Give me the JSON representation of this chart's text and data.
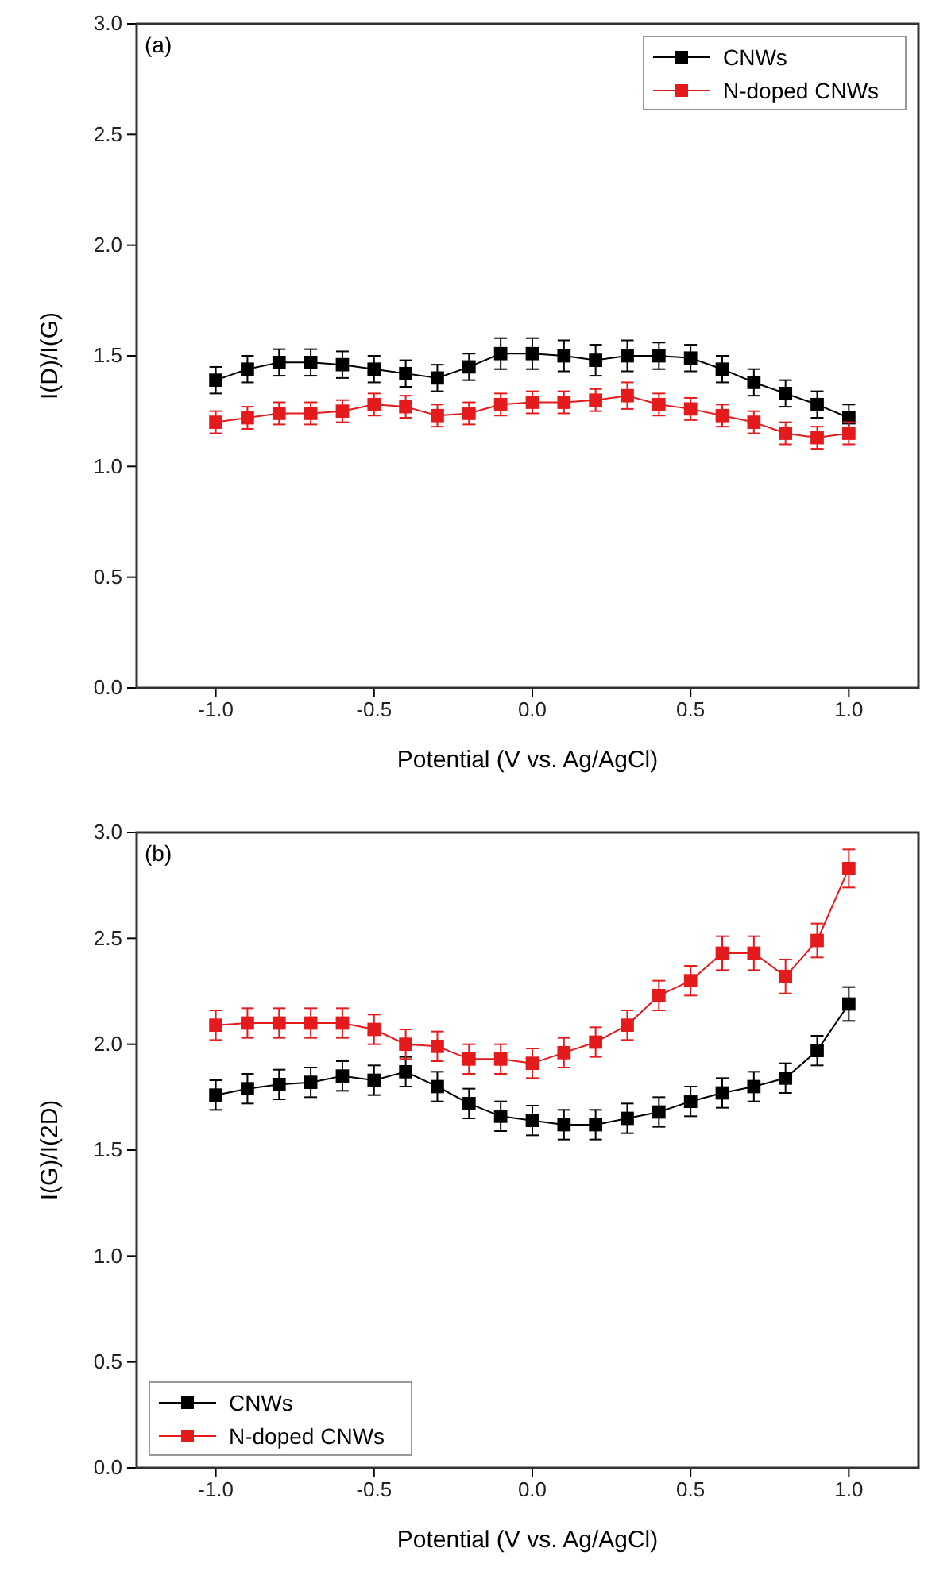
{
  "chart_data": [
    {
      "type": "line",
      "xlabel": "Potential (V vs. Ag/AgCl)",
      "ylabel": "I(D)/I(G)",
      "annotations": [
        "(a)"
      ],
      "x": [
        -1.0,
        -0.9,
        -0.8,
        -0.7,
        -0.6,
        -0.5,
        -0.4,
        -0.3,
        -0.2,
        -0.1,
        0.0,
        0.1,
        0.2,
        0.3,
        0.4,
        0.5,
        0.6,
        0.7,
        0.8,
        0.9,
        1.0
      ],
      "series": [
        {
          "name": "CNWs",
          "color": "#000000",
          "values": [
            1.39,
            1.44,
            1.47,
            1.47,
            1.46,
            1.44,
            1.42,
            1.4,
            1.45,
            1.51,
            1.51,
            1.5,
            1.48,
            1.5,
            1.5,
            1.49,
            1.44,
            1.38,
            1.33,
            1.28,
            1.22
          ],
          "errors": [
            0.06,
            0.06,
            0.06,
            0.06,
            0.06,
            0.06,
            0.06,
            0.06,
            0.06,
            0.07,
            0.07,
            0.07,
            0.07,
            0.07,
            0.06,
            0.06,
            0.06,
            0.06,
            0.06,
            0.06,
            0.06
          ]
        },
        {
          "name": "N-doped CNWs",
          "color": "#e41a1c",
          "values": [
            1.2,
            1.22,
            1.24,
            1.24,
            1.25,
            1.28,
            1.27,
            1.23,
            1.24,
            1.28,
            1.29,
            1.29,
            1.3,
            1.32,
            1.28,
            1.26,
            1.23,
            1.2,
            1.15,
            1.13,
            1.15
          ],
          "errors": [
            0.05,
            0.05,
            0.05,
            0.05,
            0.05,
            0.05,
            0.05,
            0.05,
            0.05,
            0.05,
            0.05,
            0.05,
            0.05,
            0.06,
            0.05,
            0.05,
            0.05,
            0.05,
            0.05,
            0.05,
            0.05
          ]
        }
      ],
      "xlim": [
        -1.25,
        1.22
      ],
      "ylim": [
        0,
        3
      ],
      "xticks": [
        {
          "value": -1,
          "label": "-1.0"
        },
        {
          "value": -0.5,
          "label": "-0.5"
        },
        {
          "value": 0,
          "label": "0.0"
        },
        {
          "value": 0.5,
          "label": "0.5"
        },
        {
          "value": 1,
          "label": "1.0"
        }
      ],
      "yticks": [
        {
          "value": 0,
          "label": "0.0"
        },
        {
          "value": 0.5,
          "label": "0.5"
        },
        {
          "value": 1,
          "label": "1.0"
        },
        {
          "value": 1.5,
          "label": "1.5"
        },
        {
          "value": 2,
          "label": "2.0"
        },
        {
          "value": 2.5,
          "label": "2.5"
        },
        {
          "value": 3,
          "label": "3.0"
        }
      ],
      "legend": "top right",
      "marker": "square",
      "line_style": "solid"
    },
    {
      "type": "line",
      "xlabel": "Potential (V vs. Ag/AgCl)",
      "ylabel": "I(G)/I(2D)",
      "annotations": [
        "(b)"
      ],
      "x": [
        -1.0,
        -0.9,
        -0.8,
        -0.7,
        -0.6,
        -0.5,
        -0.4,
        -0.3,
        -0.2,
        -0.1,
        0.0,
        0.1,
        0.2,
        0.3,
        0.4,
        0.5,
        0.6,
        0.7,
        0.8,
        0.9,
        1.0
      ],
      "series": [
        {
          "name": "CNWs",
          "color": "#000000",
          "values": [
            1.76,
            1.79,
            1.81,
            1.82,
            1.85,
            1.83,
            1.87,
            1.8,
            1.72,
            1.66,
            1.64,
            1.62,
            1.62,
            1.65,
            1.68,
            1.73,
            1.77,
            1.8,
            1.84,
            1.97,
            2.19
          ],
          "errors": [
            0.07,
            0.07,
            0.07,
            0.07,
            0.07,
            0.07,
            0.07,
            0.07,
            0.07,
            0.07,
            0.07,
            0.07,
            0.07,
            0.07,
            0.07,
            0.07,
            0.07,
            0.07,
            0.07,
            0.07,
            0.08
          ]
        },
        {
          "name": "N-doped CNWs",
          "color": "#e41a1c",
          "values": [
            2.09,
            2.1,
            2.1,
            2.1,
            2.1,
            2.07,
            2.0,
            1.99,
            1.93,
            1.93,
            1.91,
            1.96,
            2.01,
            2.09,
            2.23,
            2.3,
            2.43,
            2.43,
            2.32,
            2.49,
            2.83
          ],
          "errors": [
            0.07,
            0.07,
            0.07,
            0.07,
            0.07,
            0.07,
            0.07,
            0.07,
            0.07,
            0.07,
            0.07,
            0.07,
            0.07,
            0.07,
            0.07,
            0.07,
            0.08,
            0.08,
            0.08,
            0.08,
            0.09
          ]
        }
      ],
      "xlim": [
        -1.25,
        1.22
      ],
      "ylim": [
        0,
        3
      ],
      "xticks": [
        {
          "value": -1,
          "label": "-1.0"
        },
        {
          "value": -0.5,
          "label": "-0.5"
        },
        {
          "value": 0,
          "label": "0.0"
        },
        {
          "value": 0.5,
          "label": "0.5"
        },
        {
          "value": 1,
          "label": "1.0"
        }
      ],
      "yticks": [
        {
          "value": 0,
          "label": "0.0"
        },
        {
          "value": 0.5,
          "label": "0.5"
        },
        {
          "value": 1,
          "label": "1.0"
        },
        {
          "value": 1.5,
          "label": "1.5"
        },
        {
          "value": 2,
          "label": "2.0"
        },
        {
          "value": 2.5,
          "label": "2.5"
        },
        {
          "value": 3,
          "label": "3.0"
        }
      ],
      "legend": "bottom left",
      "marker": "square",
      "line_style": "solid"
    }
  ]
}
